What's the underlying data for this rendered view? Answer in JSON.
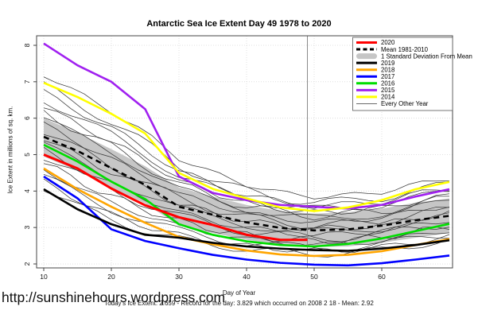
{
  "footer": {
    "url": "http://sunshinehours.wordpress.com",
    "note": "Today's Ice Extent: 2.659  - Record for the day: 3.829 which occurred on 2008 2 18  - Mean: 2.92"
  },
  "chart_data": {
    "type": "line",
    "title": "Antarctic Sea Ice Extent Day 49 1978 to 2020",
    "xlabel": "Day of Year",
    "ylabel": "Ice Extent in millions of sq. km.",
    "xticks": [
      10,
      20,
      30,
      40,
      50,
      60
    ],
    "yticks": [
      2,
      3,
      4,
      5,
      6,
      7,
      8
    ],
    "xlim": [
      9,
      70.5
    ],
    "ylim": [
      1.88,
      8.26
    ],
    "grid": "dotted lightgray, on",
    "legend_position": "top-right",
    "marker_line_x": 49,
    "x": [
      10,
      15,
      20,
      25,
      30,
      35,
      40,
      45,
      50,
      55,
      60,
      65,
      70
    ],
    "band": {
      "name": "1 Standard Deviation From Mean",
      "color": "#c6c6c6",
      "upper": [
        6.0,
        5.6,
        5.15,
        4.68,
        4.1,
        3.85,
        3.62,
        3.45,
        3.38,
        3.42,
        3.52,
        3.68,
        3.8
      ],
      "lower": [
        4.95,
        4.55,
        4.1,
        3.66,
        3.05,
        2.85,
        2.66,
        2.53,
        2.46,
        2.48,
        2.58,
        2.72,
        2.85
      ]
    },
    "series": [
      {
        "name": "Mean 1981-2010",
        "color": "#000000",
        "width": 2.6,
        "dash": "7,5",
        "values": [
          5.49,
          5.1,
          4.63,
          4.17,
          3.57,
          3.35,
          3.14,
          2.99,
          2.92,
          2.95,
          3.05,
          3.2,
          3.32
        ]
      },
      {
        "name": "2015",
        "color": "#a020f0",
        "width": 2.6,
        "dash": null,
        "values": [
          8.05,
          7.45,
          7.0,
          6.25,
          4.4,
          3.95,
          3.75,
          3.62,
          3.57,
          3.52,
          3.62,
          3.85,
          4.05
        ]
      },
      {
        "name": "2014",
        "color": "#ffff00",
        "width": 2.6,
        "dash": null,
        "values": [
          6.97,
          6.58,
          6.12,
          5.58,
          4.5,
          4.06,
          3.8,
          3.55,
          3.45,
          3.55,
          3.75,
          4.05,
          4.25
        ]
      },
      {
        "name": "2017",
        "color": "#0000ff",
        "width": 2.6,
        "dash": null,
        "values": [
          4.4,
          3.8,
          2.95,
          2.63,
          2.43,
          2.25,
          2.12,
          2.03,
          1.98,
          1.96,
          2.02,
          2.12,
          2.23
        ]
      },
      {
        "name": "2018",
        "color": "#ffa500",
        "width": 2.6,
        "dash": null,
        "values": [
          4.62,
          4.05,
          3.57,
          3.13,
          2.74,
          2.54,
          2.37,
          2.26,
          2.22,
          2.25,
          2.35,
          2.52,
          2.68
        ]
      },
      {
        "name": "2019",
        "color": "#000000",
        "width": 2.6,
        "dash": null,
        "values": [
          4.05,
          3.5,
          3.09,
          2.8,
          2.72,
          2.58,
          2.48,
          2.42,
          2.38,
          2.36,
          2.42,
          2.52,
          2.65
        ]
      },
      {
        "name": "2016",
        "color": "#00dd00",
        "width": 2.6,
        "dash": null,
        "values": [
          5.27,
          4.81,
          4.26,
          3.78,
          3.09,
          2.8,
          2.62,
          2.52,
          2.48,
          2.55,
          2.7,
          2.9,
          3.1
        ]
      },
      {
        "name": "2020",
        "color": "#ff0000",
        "width": 3.0,
        "dash": null,
        "x": [
          10,
          15,
          20,
          25,
          30,
          35,
          40,
          45,
          49
        ],
        "values": [
          5.0,
          4.62,
          4.07,
          3.61,
          3.28,
          3.07,
          2.8,
          2.66,
          2.66
        ]
      }
    ],
    "other_years": {
      "name": "Every Other Year",
      "color": "#3a3a3a",
      "width": 0.75,
      "high": [
        7.2,
        6.7,
        6.2,
        5.6,
        4.9,
        4.5,
        4.18,
        3.95,
        3.85,
        3.88,
        3.98,
        4.18,
        4.35
      ],
      "low": [
        4.1,
        3.6,
        3.2,
        2.9,
        2.68,
        2.52,
        2.4,
        2.33,
        2.28,
        2.3,
        2.38,
        2.52,
        2.65
      ],
      "fractions": [
        0.0,
        0.05,
        0.1,
        0.16,
        0.22,
        0.28,
        0.33,
        0.38,
        0.44,
        0.5,
        0.56,
        0.62,
        0.67,
        0.72,
        0.78,
        0.84,
        0.9,
        1.0
      ],
      "wiggles": [
        {
          "f": 0.45,
          "p": 0.3,
          "a": 0.1
        },
        {
          "f": 0.62,
          "p": 1.7,
          "a": 0.08
        },
        {
          "f": 0.38,
          "p": 2.9,
          "a": 0.12
        },
        {
          "f": 0.55,
          "p": 4.1,
          "a": 0.07
        },
        {
          "f": 0.7,
          "p": 5.3,
          "a": 0.1
        },
        {
          "f": 0.42,
          "p": 0.9,
          "a": 0.13
        },
        {
          "f": 0.58,
          "p": 2.2,
          "a": 0.08
        },
        {
          "f": 0.33,
          "p": 3.6,
          "a": 0.11
        },
        {
          "f": 0.66,
          "p": 4.8,
          "a": 0.09
        },
        {
          "f": 0.48,
          "p": 0.5,
          "a": 0.12
        },
        {
          "f": 0.6,
          "p": 1.4,
          "a": 0.07
        },
        {
          "f": 0.36,
          "p": 2.6,
          "a": 0.1
        },
        {
          "f": 0.52,
          "p": 3.9,
          "a": 0.13
        },
        {
          "f": 0.68,
          "p": 5.1,
          "a": 0.08
        },
        {
          "f": 0.4,
          "p": 0.2,
          "a": 0.11
        },
        {
          "f": 0.57,
          "p": 1.9,
          "a": 0.09
        },
        {
          "f": 0.44,
          "p": 3.1,
          "a": 0.12
        },
        {
          "f": 0.63,
          "p": 4.4,
          "a": 0.07
        }
      ]
    },
    "legend": [
      {
        "label": "2020",
        "style": "line",
        "color": "#ff0000"
      },
      {
        "label": "Mean 1981-2010",
        "style": "dashed",
        "color": "#000000"
      },
      {
        "label": "1 Standard Deviation From Mean",
        "style": "band",
        "color": "#c6c6c6"
      },
      {
        "label": "2019",
        "style": "line",
        "color": "#000000"
      },
      {
        "label": "2018",
        "style": "line",
        "color": "#ffa500"
      },
      {
        "label": "2017",
        "style": "line",
        "color": "#0000ff"
      },
      {
        "label": "2016",
        "style": "line",
        "color": "#00dd00"
      },
      {
        "label": "2015",
        "style": "line",
        "color": "#a020f0"
      },
      {
        "label": "2014",
        "style": "line",
        "color": "#ffff00"
      },
      {
        "label": "Every Other Year",
        "style": "thin",
        "color": "#555555"
      }
    ]
  }
}
